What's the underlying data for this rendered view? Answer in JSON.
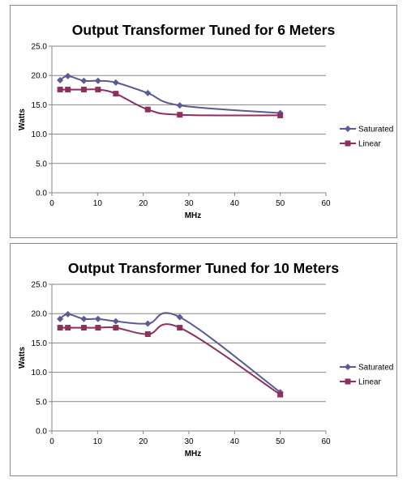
{
  "chart_data": [
    {
      "type": "line",
      "title": "Output Transformer Tuned for 6 Meters",
      "xlabel": "MHz",
      "ylabel": "Watts",
      "xlim": [
        0,
        60
      ],
      "ylim": [
        0,
        25
      ],
      "xticks": [
        0,
        10,
        20,
        30,
        40,
        50,
        60
      ],
      "yticks": [
        0,
        5,
        10,
        15,
        20,
        25
      ],
      "x_tick_labels": [
        "0",
        "10",
        "20",
        "30",
        "40",
        "50",
        "60"
      ],
      "y_tick_labels": [
        "0.0",
        "5.0",
        "10.0",
        "15.0",
        "20.0",
        "25.0"
      ],
      "grid": "horizontal",
      "legend": "right",
      "series": [
        {
          "name": "Saturated",
          "color": "#5a5a96",
          "marker": "diamond",
          "x": [
            1.8,
            3.5,
            7,
            10.1,
            14,
            21,
            28,
            50
          ],
          "y": [
            19.2,
            19.9,
            19.1,
            19.1,
            18.8,
            17.0,
            14.9,
            13.6
          ]
        },
        {
          "name": "Linear",
          "color": "#8e2f5e",
          "marker": "square",
          "x": [
            1.8,
            3.5,
            7,
            10.1,
            14,
            21,
            28,
            50
          ],
          "y": [
            17.6,
            17.6,
            17.6,
            17.6,
            16.9,
            14.2,
            13.3,
            13.2
          ]
        }
      ]
    },
    {
      "type": "line",
      "title": "Output Transformer Tuned for 10 Meters",
      "xlabel": "MHz",
      "ylabel": "Watts",
      "xlim": [
        0,
        60
      ],
      "ylim": [
        0,
        25
      ],
      "xticks": [
        0,
        10,
        20,
        30,
        40,
        50,
        60
      ],
      "yticks": [
        0,
        5,
        10,
        15,
        20,
        25
      ],
      "x_tick_labels": [
        "0",
        "10",
        "20",
        "30",
        "40",
        "50",
        "60"
      ],
      "y_tick_labels": [
        "0.0",
        "5.0",
        "10.0",
        "15.0",
        "20.0",
        "25.0"
      ],
      "grid": "horizontal",
      "legend": "right",
      "series": [
        {
          "name": "Saturated",
          "color": "#5a5a96",
          "marker": "diamond",
          "x": [
            1.8,
            3.5,
            7,
            10.1,
            14,
            21,
            28,
            50
          ],
          "y": [
            19.1,
            19.9,
            19.1,
            19.1,
            18.7,
            18.3,
            19.4,
            6.6
          ]
        },
        {
          "name": "Linear",
          "color": "#8e2f5e",
          "marker": "square",
          "x": [
            1.8,
            3.5,
            7,
            10.1,
            14,
            21,
            28,
            50
          ],
          "y": [
            17.6,
            17.6,
            17.6,
            17.6,
            17.6,
            16.5,
            17.6,
            6.2
          ]
        }
      ]
    }
  ]
}
